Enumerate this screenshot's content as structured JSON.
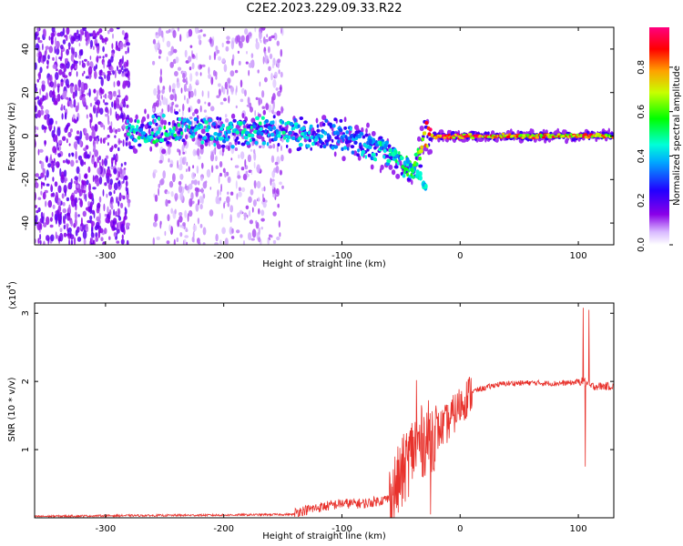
{
  "title": "C2E2.2023.229.09.33.R22",
  "colors": {
    "snr_line": "#e8322c",
    "colormap": [
      "#ffffff",
      "#9400d3",
      "#4b00ff",
      "#0000ff",
      "#00ffff",
      "#00ff00",
      "#ffff00",
      "#ff7f00",
      "#ff0000",
      "#ff1493"
    ]
  },
  "chart_data": [
    {
      "type": "heatmap",
      "title": "C2E2.2023.229.09.33.R22",
      "xlabel": "Height of straight line (km)",
      "ylabel": "Frequency (Hz)",
      "xlim": [
        -360,
        130
      ],
      "ylim": [
        -50,
        50
      ],
      "x_ticks": [
        -300,
        -200,
        -100,
        0,
        100
      ],
      "y_ticks": [
        40,
        20,
        0,
        -20,
        -40
      ],
      "colorbar": {
        "label": "Normalized spectral amplitude",
        "range": [
          0,
          1
        ],
        "ticks": [
          0.0,
          0.2,
          0.4,
          0.6,
          0.8
        ]
      },
      "ridge": {
        "description_points_x": [
          -280,
          -250,
          -200,
          -150,
          -120,
          -100,
          -80,
          -60,
          -50,
          -40,
          -30,
          0,
          50,
          100,
          130
        ],
        "center_freq": [
          2,
          3,
          2,
          2,
          1,
          0,
          -5,
          -8,
          -12,
          -18,
          0,
          0,
          0,
          0,
          0
        ],
        "amplitude": [
          0.45,
          0.5,
          0.45,
          0.45,
          0.4,
          0.35,
          0.4,
          0.45,
          0.5,
          0.6,
          0.9,
          0.9,
          0.85,
          0.85,
          0.75
        ]
      },
      "branch_points": [
        [
          -75,
          -2
        ],
        [
          -65,
          -4
        ],
        [
          -55,
          -8
        ],
        [
          -45,
          -12
        ],
        [
          -40,
          -15
        ],
        [
          -35,
          -18
        ],
        [
          -30,
          -23
        ]
      ],
      "noise_regions": [
        [
          -360,
          -280
        ],
        [
          -260,
          -150
        ]
      ]
    },
    {
      "type": "line",
      "title": "",
      "xlabel": "Height of straight line (km)",
      "ylabel": "SNR (10 * v/v)",
      "multiplier_label": "(x10",
      "multiplier_exp": "4",
      "multiplier_close": ")",
      "xlim": [
        -360,
        130
      ],
      "ylim": [
        0,
        3.15
      ],
      "x_ticks": [
        -300,
        -200,
        -100,
        0,
        100
      ],
      "y_ticks": [
        1,
        2,
        3
      ],
      "envelope": {
        "x": [
          -360,
          -300,
          -200,
          -140,
          -120,
          -100,
          -80,
          -60,
          -50,
          -40,
          -30,
          -20,
          -10,
          0,
          10,
          20,
          30,
          40,
          60,
          80,
          95,
          100,
          105,
          110,
          130
        ],
        "y": [
          0.02,
          0.03,
          0.04,
          0.05,
          0.12,
          0.18,
          0.18,
          0.25,
          0.6,
          1.0,
          1.15,
          1.25,
          1.4,
          1.65,
          1.85,
          1.9,
          1.95,
          1.97,
          1.98,
          1.97,
          1.98,
          2.0,
          2.0,
          1.93,
          1.93
        ]
      },
      "spikes": [
        [
          -37,
          2.02
        ],
        [
          -25,
          0.05
        ],
        [
          104,
          3.08
        ],
        [
          106,
          0.75
        ],
        [
          109,
          3.05
        ]
      ]
    }
  ]
}
